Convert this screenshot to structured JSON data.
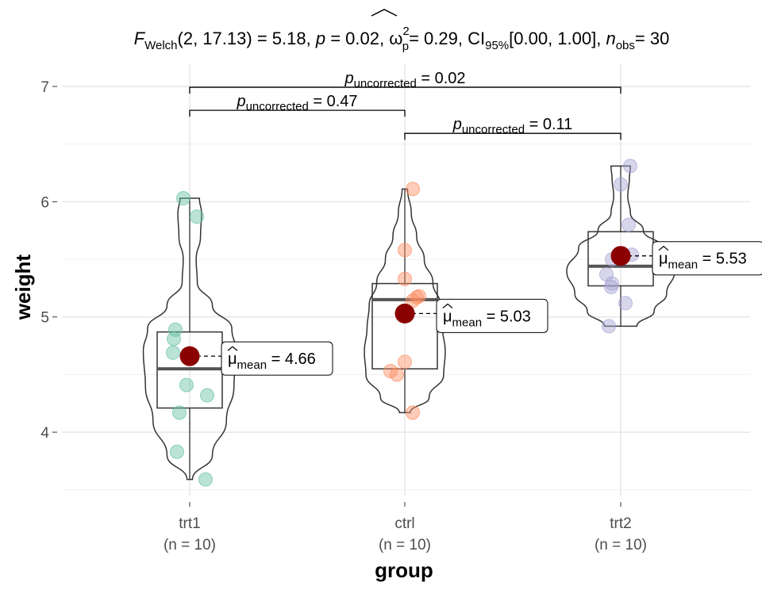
{
  "chart_data": {
    "type": "violin-box-scatter",
    "title": {
      "stat_name": "F",
      "stat_sub": "Welch",
      "df": "(2, 17.13)",
      "stat_value": "= 5.18,",
      "p_name": "p",
      "p_value": "= 0.02,",
      "effect_name": "ω",
      "effect_sup": "2",
      "effect_sub": "p",
      "effect_value": "= 0.29,",
      "ci_name": "CI",
      "ci_sub": "95%",
      "ci_value": "[0.00, 1.00],",
      "n_name": "n",
      "n_sub": "obs",
      "n_value": "= 30"
    },
    "xlabel": "group",
    "ylabel": "weight",
    "ylim": [
      3.45,
      7.2
    ],
    "yticks": [
      4,
      5,
      6,
      7
    ],
    "grid": true,
    "groups": [
      {
        "name": "trt1",
        "n_label": "(n = 10)",
        "color": "#66c2a5",
        "points": [
          4.81,
          4.17,
          4.41,
          3.59,
          5.87,
          3.83,
          6.03,
          4.89,
          4.32,
          4.69
        ],
        "box": {
          "q1": 4.21,
          "median": 4.55,
          "q3": 4.87,
          "low": 3.59,
          "high": 6.03
        },
        "mean": 4.66,
        "mean_label": {
          "symbol": "μ",
          "sub": "mean",
          "value": "= 4.66"
        }
      },
      {
        "name": "ctrl",
        "n_label": "(n = 10)",
        "color": "#fc8d62",
        "points": [
          4.17,
          5.58,
          5.18,
          6.11,
          4.5,
          4.61,
          5.17,
          4.53,
          5.33,
          5.14
        ],
        "box": {
          "q1": 4.55,
          "median": 5.15,
          "q3": 5.29,
          "low": 4.17,
          "high": 6.11
        },
        "mean": 5.03,
        "mean_label": {
          "symbol": "μ",
          "sub": "mean",
          "value": "= 5.03"
        }
      },
      {
        "name": "trt2",
        "n_label": "(n = 10)",
        "color": "#a6a3d3",
        "points": [
          6.31,
          5.12,
          5.54,
          5.5,
          5.37,
          5.29,
          4.92,
          6.15,
          5.8,
          5.26
        ],
        "box": {
          "q1": 5.27,
          "median": 5.44,
          "q3": 5.74,
          "low": 4.92,
          "high": 6.31
        },
        "mean": 5.53,
        "mean_label": {
          "symbol": "μ",
          "sub": "mean",
          "value": "= 5.53"
        }
      }
    ],
    "comparisons": [
      {
        "from": 0,
        "to": 2,
        "y": 7.0,
        "label_name": "p",
        "label_sub": "uncorrected",
        "label_value": "= 0.02"
      },
      {
        "from": 0,
        "to": 1,
        "y": 6.8,
        "label_name": "p",
        "label_sub": "uncorrected",
        "label_value": "= 0.47"
      },
      {
        "from": 1,
        "to": 2,
        "y": 6.6,
        "label_name": "p",
        "label_sub": "uncorrected",
        "label_value": "= 0.11"
      }
    ],
    "mean_color": "#8b0000"
  }
}
